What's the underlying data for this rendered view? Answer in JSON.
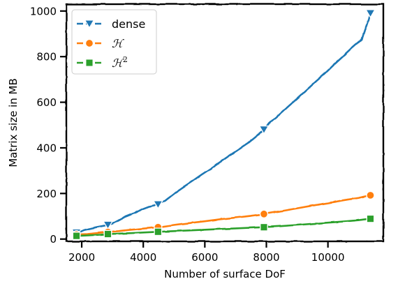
{
  "chart_data": {
    "type": "line",
    "xlabel": "Number of surface DoF",
    "ylabel": "Matrix size in MB",
    "xlim": [
      1500,
      11800
    ],
    "ylim": [
      -10,
      1030
    ],
    "xticks": [
      2000,
      4000,
      6000,
      8000,
      10000
    ],
    "yticks": [
      0,
      200,
      400,
      600,
      800,
      1000
    ],
    "legend_position": "top-left",
    "grid": false,
    "series": [
      {
        "name": "dense",
        "legend_main": "dense",
        "legend_sup": "",
        "color": "#1f77b4",
        "marker": "triangle-down",
        "marker_x": [
          1830,
          2850,
          4480,
          7920,
          11380
        ],
        "marker_y": [
          28,
          62,
          152,
          480,
          990
        ],
        "x": [
          1830,
          1950,
          2100,
          2300,
          2500,
          2700,
          2850,
          3000,
          3200,
          3400,
          3600,
          3800,
          4000,
          4200,
          4480,
          4700,
          5000,
          5300,
          5600,
          5900,
          6200,
          6500,
          6800,
          7100,
          7400,
          7700,
          7920,
          8100,
          8400,
          8700,
          9000,
          9300,
          9600,
          9900,
          10200,
          10500,
          10800,
          11100,
          11380
        ],
        "y": [
          28,
          32,
          40,
          47,
          53,
          58,
          62,
          68,
          82,
          97,
          108,
          120,
          133,
          143,
          152,
          168,
          200,
          228,
          255,
          283,
          310,
          338,
          366,
          393,
          420,
          453,
          480,
          508,
          543,
          580,
          616,
          653,
          690,
          726,
          765,
          802,
          840,
          875,
          990
        ]
      },
      {
        "name": "H",
        "legend_main": "ℋ",
        "legend_sup": "",
        "color": "#ff7f0e",
        "marker": "circle",
        "marker_x": [
          1830,
          2850,
          4480,
          7920,
          11380
        ],
        "marker_y": [
          20,
          31,
          52,
          110,
          192
        ],
        "x": [
          1830,
          2200,
          2600,
          2850,
          3200,
          3600,
          4000,
          4480,
          5000,
          5500,
          6000,
          6500,
          7000,
          7500,
          7920,
          8500,
          9000,
          9500,
          10000,
          10500,
          11000,
          11380
        ],
        "y": [
          20,
          22,
          28,
          31,
          35,
          41,
          46,
          52,
          62,
          70,
          78,
          87,
          94,
          102,
          110,
          123,
          135,
          147,
          158,
          170,
          181,
          192
        ]
      },
      {
        "name": "H2",
        "legend_main": "ℋ",
        "legend_sup": "2",
        "color": "#2ca02c",
        "marker": "square",
        "marker_x": [
          1830,
          2850,
          4480,
          7920,
          11380
        ],
        "marker_y": [
          14,
          22,
          32,
          52,
          89
        ],
        "x": [
          1830,
          2200,
          2600,
          2850,
          3200,
          3600,
          4000,
          4480,
          5000,
          5500,
          6000,
          6500,
          7000,
          7500,
          7920,
          8500,
          9000,
          9500,
          10000,
          10500,
          11000,
          11380
        ],
        "y": [
          14,
          16,
          19,
          22,
          24,
          26,
          29,
          32,
          35,
          38,
          41,
          44,
          47,
          50,
          52,
          57,
          62,
          67,
          72,
          77,
          83,
          89
        ]
      }
    ]
  }
}
